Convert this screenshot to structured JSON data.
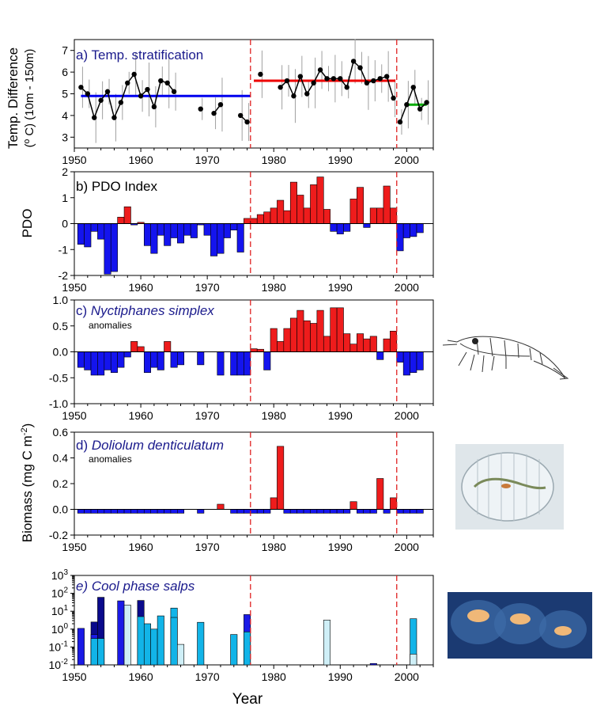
{
  "figure": {
    "xlabel": "Year",
    "shared_ylabel": "Biomass (mg C m",
    "shared_ylabel_sup": "-2",
    "shared_ylabel_end": ")",
    "regime_shift_years": [
      1976.5,
      1998.5
    ]
  },
  "chart_data": [
    {
      "id": "a",
      "type": "line",
      "title": "a) Temp. stratification",
      "ylabel_line1": "Temp. Difference",
      "ylabel_line2": "(º C)  (10m - 150m)",
      "xlim": [
        1950,
        2004
      ],
      "ylim": [
        2.5,
        7.5
      ],
      "yticks": [
        3,
        4,
        5,
        6,
        7
      ],
      "xticks": [
        1950,
        1960,
        1970,
        1980,
        1990,
        2000
      ],
      "segments": [
        [
          [
            1951,
            5.3
          ],
          [
            1952,
            5.0
          ],
          [
            1953,
            3.9
          ],
          [
            1954,
            4.7
          ],
          [
            1955,
            5.1
          ],
          [
            1956,
            3.9
          ],
          [
            1957,
            4.6
          ],
          [
            1958,
            5.5
          ],
          [
            1959,
            5.9
          ],
          [
            1960,
            4.9
          ],
          [
            1961,
            5.2
          ],
          [
            1962,
            4.4
          ],
          [
            1963,
            5.6
          ],
          [
            1964,
            5.5
          ],
          [
            1965,
            5.1
          ]
        ],
        [
          [
            1969,
            4.3
          ]
        ],
        [
          [
            1971,
            4.1
          ],
          [
            1972,
            4.5
          ]
        ],
        [
          [
            1975,
            4.0
          ],
          [
            1976,
            3.7
          ]
        ],
        [
          [
            1978,
            5.9
          ]
        ],
        [
          [
            1981,
            5.3
          ],
          [
            1982,
            5.6
          ],
          [
            1983,
            4.9
          ],
          [
            1984,
            5.8
          ],
          [
            1985,
            5.0
          ],
          [
            1986,
            5.5
          ],
          [
            1987,
            6.1
          ],
          [
            1988,
            5.7
          ],
          [
            1989,
            5.7
          ],
          [
            1990,
            5.7
          ],
          [
            1991,
            5.3
          ],
          [
            1992,
            6.5
          ],
          [
            1993,
            6.2
          ],
          [
            1994,
            5.5
          ],
          [
            1995,
            5.6
          ],
          [
            1996,
            5.7
          ],
          [
            1997,
            5.8
          ],
          [
            1998,
            4.8
          ]
        ],
        [
          [
            1999,
            3.7
          ],
          [
            2000,
            4.5
          ],
          [
            2001,
            5.3
          ],
          [
            2002,
            4.3
          ],
          [
            2003,
            4.6
          ]
        ]
      ],
      "means": [
        {
          "from": 1951,
          "to": 1976.5,
          "value": 4.9,
          "color": "#0000ee"
        },
        {
          "from": 1977,
          "to": 1998.3,
          "value": 5.6,
          "color": "#ee0000"
        },
        {
          "from": 1999.8,
          "to": 2003,
          "value": 4.5,
          "color": "#00aa00"
        }
      ]
    },
    {
      "id": "b",
      "type": "bar",
      "title": "b) PDO Index",
      "ylabel": "PDO",
      "xlim": [
        1950,
        2004
      ],
      "ylim": [
        -2,
        2
      ],
      "yticks": [
        -2,
        -1,
        0,
        1,
        2
      ],
      "xticks": [
        1950,
        1960,
        1970,
        1980,
        1990,
        2000
      ],
      "positive_color": "#ee1c1c",
      "negative_color": "#1414ee",
      "years": [
        1951,
        1952,
        1953,
        1954,
        1955,
        1956,
        1957,
        1958,
        1959,
        1960,
        1961,
        1962,
        1963,
        1964,
        1965,
        1966,
        1967,
        1968,
        1969,
        1970,
        1971,
        1972,
        1973,
        1974,
        1975,
        1976,
        1977,
        1978,
        1979,
        1980,
        1981,
        1982,
        1983,
        1984,
        1985,
        1986,
        1987,
        1988,
        1989,
        1990,
        1991,
        1992,
        1993,
        1994,
        1995,
        1996,
        1997,
        1998,
        1999,
        2000,
        2001,
        2002
      ],
      "values": [
        -0.8,
        -0.9,
        -0.3,
        -0.6,
        -1.95,
        -1.85,
        0.25,
        0.65,
        -0.05,
        0.05,
        -0.85,
        -1.15,
        -0.45,
        -0.85,
        -0.55,
        -0.75,
        -0.45,
        -0.55,
        -0.05,
        -0.45,
        -1.25,
        -1.15,
        -0.55,
        -0.25,
        -1.1,
        0.2,
        0.2,
        0.35,
        0.45,
        0.6,
        0.9,
        0.5,
        1.6,
        1.1,
        0.6,
        1.5,
        1.8,
        0.55,
        -0.3,
        -0.4,
        -0.3,
        0.95,
        1.4,
        -0.15,
        0.6,
        0.6,
        1.45,
        0.6,
        -1.05,
        -0.55,
        -0.5,
        -0.35
      ]
    },
    {
      "id": "c",
      "type": "bar",
      "title": "c) Nyctiphanes simplex",
      "title_prefix": "c) ",
      "title_species": "Nyctiphanes simplex",
      "subtitle": "anomalies",
      "xlim": [
        1950,
        2004
      ],
      "ylim": [
        -1.0,
        1.0
      ],
      "yticks": [
        -1.0,
        -0.5,
        0.0,
        0.5,
        1.0
      ],
      "ytick_labels": [
        "-1.0",
        "-0.5",
        "0.0",
        "0.5",
        "1.0"
      ],
      "xticks": [
        1950,
        1960,
        1970,
        1980,
        1990,
        2000
      ],
      "positive_color": "#ee1c1c",
      "negative_color": "#1414ee",
      "years": [
        1951,
        1952,
        1953,
        1954,
        1955,
        1956,
        1957,
        1958,
        1959,
        1960,
        1961,
        1962,
        1963,
        1964,
        1965,
        1966,
        1969,
        1972,
        1974,
        1975,
        1976,
        1977,
        1978,
        1979,
        1980,
        1981,
        1982,
        1983,
        1984,
        1985,
        1986,
        1987,
        1988,
        1989,
        1990,
        1991,
        1992,
        1993,
        1994,
        1995,
        1996,
        1997,
        1998,
        1999,
        2000,
        2001,
        2002
      ],
      "values": [
        -0.3,
        -0.35,
        -0.45,
        -0.45,
        -0.35,
        -0.4,
        -0.3,
        -0.1,
        0.2,
        0.1,
        -0.4,
        -0.3,
        -0.35,
        0.2,
        -0.3,
        -0.25,
        -0.25,
        -0.45,
        -0.45,
        -0.45,
        -0.45,
        0.06,
        0.05,
        -0.35,
        0.45,
        0.2,
        0.45,
        0.65,
        0.8,
        0.6,
        0.55,
        0.8,
        0.3,
        0.85,
        0.85,
        0.35,
        0.15,
        0.35,
        0.25,
        0.3,
        -0.15,
        0.25,
        0.4,
        -0.2,
        -0.45,
        -0.4,
        -0.35
      ]
    },
    {
      "id": "d",
      "type": "bar",
      "title": "d) Doliolum denticulatum",
      "title_prefix": "d) ",
      "title_species": "Doliolum denticulatum",
      "subtitle": "anomalies",
      "xlim": [
        1950,
        2004
      ],
      "ylim": [
        -0.2,
        0.6
      ],
      "yticks": [
        -0.2,
        0.0,
        0.2,
        0.4,
        0.6
      ],
      "ytick_labels": [
        "-0.2",
        "0.0",
        "0.2",
        "0.4",
        "0.6"
      ],
      "xticks": [
        1950,
        1960,
        1970,
        1980,
        1990,
        2000
      ],
      "positive_color": "#ee1c1c",
      "negative_color": "#1414ee",
      "years": [
        1951,
        1952,
        1953,
        1954,
        1955,
        1956,
        1957,
        1958,
        1959,
        1960,
        1961,
        1962,
        1963,
        1964,
        1965,
        1966,
        1969,
        1972,
        1974,
        1975,
        1976,
        1977,
        1978,
        1979,
        1980,
        1981,
        1982,
        1983,
        1984,
        1985,
        1986,
        1987,
        1988,
        1989,
        1990,
        1991,
        1992,
        1993,
        1994,
        1995,
        1996,
        1997,
        1998,
        1999,
        2000,
        2001,
        2002
      ],
      "values": [
        -0.03,
        -0.03,
        -0.03,
        -0.03,
        -0.03,
        -0.03,
        -0.03,
        -0.03,
        -0.03,
        -0.03,
        -0.03,
        -0.03,
        -0.03,
        -0.03,
        -0.03,
        -0.03,
        -0.03,
        0.04,
        -0.03,
        -0.03,
        -0.03,
        -0.03,
        -0.03,
        -0.03,
        0.09,
        0.49,
        -0.03,
        -0.03,
        -0.03,
        -0.03,
        -0.03,
        -0.03,
        -0.03,
        -0.03,
        -0.03,
        -0.03,
        0.06,
        -0.03,
        -0.03,
        -0.03,
        0.24,
        -0.03,
        0.09,
        -0.03,
        -0.03,
        -0.03,
        -0.03
      ]
    },
    {
      "id": "e",
      "type": "bar",
      "title": "e) Cool phase salps",
      "scale": "log",
      "xlim": [
        1950,
        2004
      ],
      "ylim": [
        0.01,
        1000
      ],
      "ytick_exponents": [
        "-2",
        "-1",
        "0",
        "1",
        "2",
        "3"
      ],
      "ytick_base": "10",
      "xticks": [
        1950,
        1960,
        1970,
        1980,
        1990,
        2000
      ],
      "xtick_labels": [
        "1950",
        "1960",
        "1970",
        "1980",
        "1990",
        "2000"
      ],
      "series_colors": [
        "#0a0a8c",
        "#1a1ae6",
        "#12b4e8",
        "#cfeff7"
      ],
      "bars": [
        {
          "year": 1951,
          "layers": [
            {
              "value": 1.1,
              "color": "#1a1ae6"
            }
          ]
        },
        {
          "year": 1953,
          "layers": [
            {
              "value": 2.5,
              "color": "#0a0a8c"
            },
            {
              "value": 0.5,
              "color": "#1a1ae6"
            },
            {
              "value": 0.3,
              "color": "#12b4e8"
            }
          ]
        },
        {
          "year": 1954,
          "layers": [
            {
              "value": 60,
              "color": "#0a0a8c"
            },
            {
              "value": 0.3,
              "color": "#12b4e8"
            }
          ]
        },
        {
          "year": 1957,
          "layers": [
            {
              "value": 38,
              "color": "#1a1ae6"
            }
          ]
        },
        {
          "year": 1958,
          "layers": [
            {
              "value": 22,
              "color": "#cfeff7"
            }
          ]
        },
        {
          "year": 1960,
          "layers": [
            {
              "value": 40,
              "color": "#0a0a8c"
            },
            {
              "value": 5,
              "color": "#12b4e8"
            }
          ]
        },
        {
          "year": 1961,
          "layers": [
            {
              "value": 2.0,
              "color": "#12b4e8"
            }
          ]
        },
        {
          "year": 1962,
          "layers": [
            {
              "value": 1.0,
              "color": "#12b4e8"
            }
          ]
        },
        {
          "year": 1963,
          "layers": [
            {
              "value": 5.5,
              "color": "#12b4e8"
            }
          ]
        },
        {
          "year": 1965,
          "layers": [
            {
              "value": 15,
              "color": "#12b4e8"
            },
            {
              "value": 4.5,
              "color": "#12b4e8"
            }
          ]
        },
        {
          "year": 1966,
          "layers": [
            {
              "value": 0.14,
              "color": "#cfeff7"
            }
          ]
        },
        {
          "year": 1969,
          "layers": [
            {
              "value": 2.4,
              "color": "#12b4e8"
            }
          ]
        },
        {
          "year": 1974,
          "layers": [
            {
              "value": 0.5,
              "color": "#12b4e8"
            }
          ]
        },
        {
          "year": 1976,
          "layers": [
            {
              "value": 6.5,
              "color": "#1a1ae6"
            },
            {
              "value": 0.7,
              "color": "#12b4e8"
            }
          ]
        },
        {
          "year": 1988,
          "layers": [
            {
              "value": 3.2,
              "color": "#cfeff7"
            }
          ]
        },
        {
          "year": 1995,
          "layers": [
            {
              "value": 0.012,
              "color": "#1a1ae6"
            }
          ]
        },
        {
          "year": 2001,
          "layers": [
            {
              "value": 3.8,
              "color": "#12b4e8"
            },
            {
              "value": 0.04,
              "color": "#cfeff7"
            }
          ]
        }
      ]
    }
  ],
  "images": [
    {
      "id": "krill",
      "icon": "krill-illustration"
    },
    {
      "id": "doliolid",
      "icon": "doliolid-photo"
    },
    {
      "id": "salps",
      "icon": "salp-chain-photo"
    }
  ],
  "colors": {
    "title_text": "#1a1a8c",
    "regime_line": "#e02020",
    "axis": "#000000"
  }
}
